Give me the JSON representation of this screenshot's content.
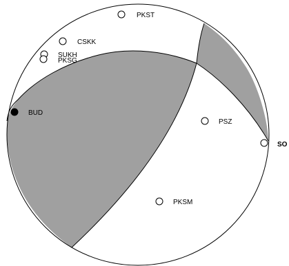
{
  "colors": {
    "compressional_fill": "#a0a0a0",
    "outline": "#000000",
    "open_marker_fill": "#ffffff",
    "closed_marker_fill": "#000000"
  },
  "stations": [
    {
      "name": "PKST",
      "polarity": "open"
    },
    {
      "name": "CSKK",
      "polarity": "open"
    },
    {
      "name": "SUKH",
      "polarity": "open"
    },
    {
      "name": "PKSG",
      "polarity": "open"
    },
    {
      "name": "BUD",
      "polarity": "filled"
    },
    {
      "name": "PSZ",
      "polarity": "open"
    },
    {
      "name": "SO",
      "polarity": "open"
    },
    {
      "name": "PKSM",
      "polarity": "open"
    }
  ]
}
